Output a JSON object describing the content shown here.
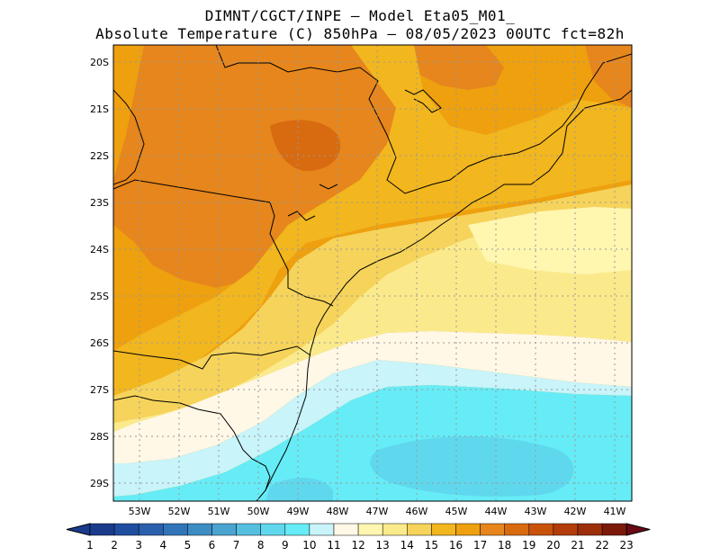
{
  "header": {
    "line1": "DIMNT/CGCT/INPE –  Model Eta05_M01_",
    "line2": "Absolute Temperature (C) 850hPa –  08/05/2023 00UTC fct=82h"
  },
  "map": {
    "lat_labels": [
      "20S",
      "21S",
      "22S",
      "23S",
      "24S",
      "25S",
      "26S",
      "27S",
      "28S",
      "29S"
    ],
    "lon_labels": [
      "53W",
      "52W",
      "51W",
      "50W",
      "49W",
      "48W",
      "47W",
      "46W",
      "45W",
      "44W",
      "43W",
      "42W",
      "41W"
    ]
  },
  "colorbar": {
    "labels": [
      "1",
      "2",
      "3",
      "4",
      "5",
      "6",
      "7",
      "8",
      "9",
      "10",
      "11",
      "12",
      "13",
      "14",
      "15",
      "16",
      "17",
      "18",
      "19",
      "20",
      "21",
      "22",
      "23"
    ],
    "colors": [
      "#1a3a8c",
      "#1f4ea0",
      "#2a5fae",
      "#3175b8",
      "#3d8cc4",
      "#4aa4d0",
      "#55bfe0",
      "#5fd8ee",
      "#66ecf6",
      "#c8f4fa",
      "#fff8e6",
      "#fff6b0",
      "#fbea8c",
      "#f6d35a",
      "#f2b61e",
      "#eea00e",
      "#e6861c",
      "#d86a10",
      "#c8520a",
      "#b23c0a",
      "#9c2e0a",
      "#7c1a0a",
      "#6a0a14"
    ]
  }
}
